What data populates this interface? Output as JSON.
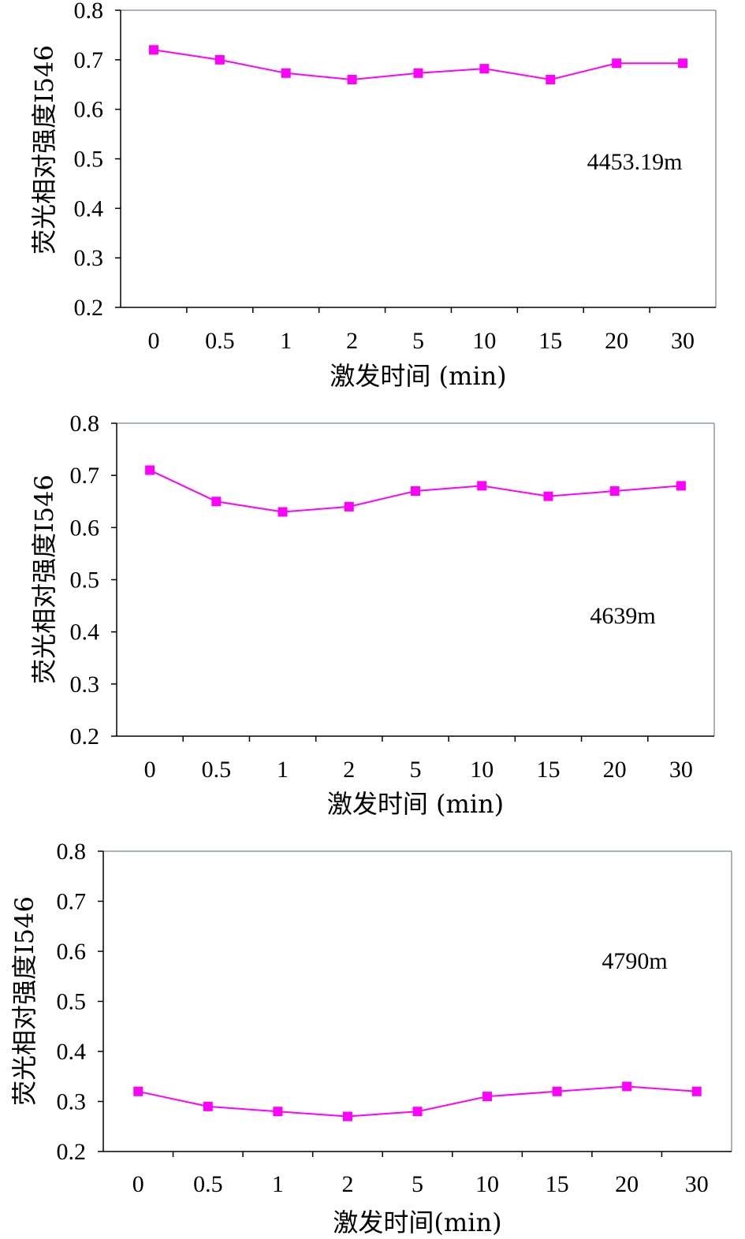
{
  "chart_data": [
    {
      "type": "line",
      "categories": [
        "0",
        "0.5",
        "1",
        "2",
        "5",
        "10",
        "15",
        "20",
        "30"
      ],
      "series": [
        {
          "values": [
            0.72,
            0.7,
            0.673,
            0.66,
            0.673,
            0.682,
            0.66,
            0.693,
            0.693
          ]
        }
      ],
      "xlabel": "激发时间 (min)",
      "ylabel": "荧光相对强度I546",
      "ylim": [
        0.2,
        0.8
      ],
      "yticks": [
        "0.2",
        "0.3",
        "0.4",
        "0.5",
        "0.6",
        "0.7",
        "0.8"
      ],
      "annotation": "4453.19m",
      "grid": false,
      "color": "#ff00ff"
    },
    {
      "type": "line",
      "categories": [
        "0",
        "0.5",
        "1",
        "2",
        "5",
        "10",
        "15",
        "20",
        "30"
      ],
      "series": [
        {
          "values": [
            0.71,
            0.65,
            0.63,
            0.64,
            0.67,
            0.68,
            0.66,
            0.67,
            0.68
          ]
        }
      ],
      "xlabel": "激发时间 (min)",
      "ylabel": "荧光相对强度I546",
      "ylim": [
        0.2,
        0.8
      ],
      "yticks": [
        "0.2",
        "0.3",
        "0.4",
        "0.5",
        "0.6",
        "0.7",
        "0.8"
      ],
      "annotation": "4639m",
      "grid": false,
      "color": "#ff00ff"
    },
    {
      "type": "line",
      "categories": [
        "0",
        "0.5",
        "1",
        "2",
        "5",
        "10",
        "15",
        "20",
        "30"
      ],
      "series": [
        {
          "values": [
            0.32,
            0.29,
            0.28,
            0.27,
            0.28,
            0.31,
            0.32,
            0.33,
            0.32
          ]
        }
      ],
      "xlabel": "激发时间(min)",
      "ylabel": "荧光相对强度I546",
      "ylim": [
        0.2,
        0.8
      ],
      "yticks": [
        "0.2",
        "0.3",
        "0.4",
        "0.5",
        "0.6",
        "0.7",
        "0.8"
      ],
      "annotation": "4790m",
      "grid": false,
      "color": "#ff00ff"
    }
  ]
}
